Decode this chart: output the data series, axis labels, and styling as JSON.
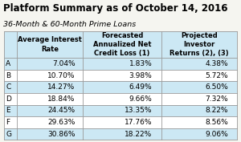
{
  "title": "Platform Summary as of October 14, 2016",
  "subtitle": "36-Month & 60-Month Prime Loans",
  "col_headers": [
    "",
    "Average Interest\nRate",
    "Forecasted\nAnnualized Net\nCredit Loss (1)",
    "Projected\nInvestor\nReturns (2), (3)"
  ],
  "rows": [
    [
      "A",
      "7.04%",
      "1.83%",
      "4.38%"
    ],
    [
      "B",
      "10.70%",
      "3.98%",
      "5.72%"
    ],
    [
      "C",
      "14.27%",
      "6.49%",
      "6.50%"
    ],
    [
      "D",
      "18.84%",
      "9.66%",
      "7.32%"
    ],
    [
      "E",
      "24.45%",
      "13.35%",
      "8.22%"
    ],
    [
      "F",
      "29.63%",
      "17.76%",
      "8.56%"
    ],
    [
      "G",
      "30.86%",
      "18.22%",
      "9.06%"
    ]
  ],
  "shaded_rows": [
    0,
    2,
    4,
    6
  ],
  "row_shade_color": "#cce8f4",
  "header_shade_color": "#cce8f4",
  "bg_color": "#f5f5f0",
  "border_color": "#999999",
  "title_color": "#000000",
  "text_color": "#000000",
  "title_fontsize": 8.5,
  "subtitle_fontsize": 6.8,
  "header_fontsize": 6.0,
  "cell_fontsize": 6.5,
  "superscript_fontsize": 4.5
}
